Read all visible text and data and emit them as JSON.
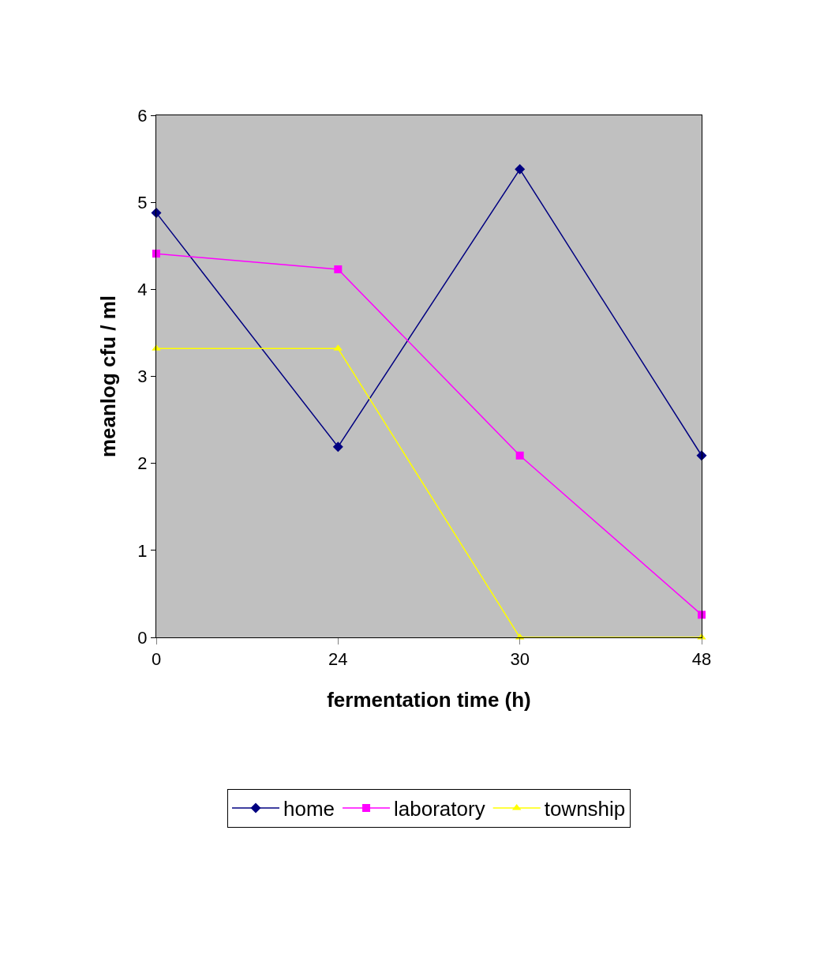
{
  "chart_data": {
    "type": "line",
    "xlabel": "fermentation time (h)",
    "ylabel": "meanlog cfu / ml",
    "categories": [
      "0",
      "24",
      "30",
      "48"
    ],
    "series": [
      {
        "name": "home",
        "color": "#000080",
        "marker": "diamond",
        "values": [
          4.88,
          2.19,
          5.38,
          2.09
        ]
      },
      {
        "name": "laboratory",
        "color": "#ff00ff",
        "marker": "square",
        "values": [
          4.41,
          4.23,
          2.09,
          0.26
        ]
      },
      {
        "name": "township",
        "color": "#ffff00",
        "marker": "triangle",
        "values": [
          3.32,
          3.32,
          0,
          0
        ]
      }
    ],
    "ylim": [
      0,
      6
    ],
    "yticks": [
      0,
      1,
      2,
      3,
      4,
      5,
      6
    ],
    "grid": false,
    "legend": "bottom",
    "line_style": "solid"
  }
}
